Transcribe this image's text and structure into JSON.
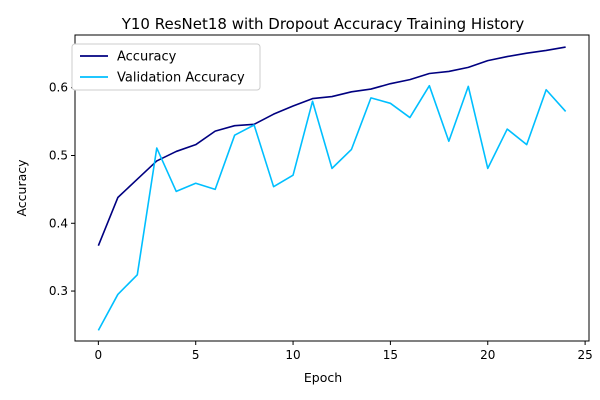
{
  "chart_data": {
    "type": "line",
    "title": "Y10 ResNet18 with Dropout Accuracy Training History",
    "xlabel": "Epoch",
    "ylabel": "Accuracy",
    "xlim": [
      -1.2,
      25.2
    ],
    "ylim": [
      0.2263,
      0.6778
    ],
    "xticks": [
      0,
      5,
      10,
      15,
      20,
      25
    ],
    "yticks": [
      0.3,
      0.4,
      0.5,
      0.6
    ],
    "xtick_labels": [
      "0",
      "5",
      "10",
      "15",
      "20",
      "25"
    ],
    "ytick_labels": [
      "0.3",
      "0.4",
      "0.5",
      "0.6"
    ],
    "grid": false,
    "legend_position": "upper-left",
    "x": [
      0,
      1,
      2,
      3,
      4,
      5,
      6,
      7,
      8,
      9,
      10,
      11,
      12,
      13,
      14,
      15,
      16,
      17,
      18,
      19,
      20,
      21,
      22,
      23,
      24
    ],
    "series": [
      {
        "name": "Accuracy",
        "color": "#000080",
        "values": [
          0.367,
          0.438,
          0.465,
          0.492,
          0.506,
          0.516,
          0.536,
          0.544,
          0.546,
          0.561,
          0.573,
          0.584,
          0.587,
          0.594,
          0.598,
          0.606,
          0.612,
          0.621,
          0.624,
          0.63,
          0.64,
          0.646,
          0.651,
          0.655,
          0.66
        ]
      },
      {
        "name": "Validation Accuracy",
        "color": "#00BFFF",
        "values": [
          0.242,
          0.295,
          0.324,
          0.511,
          0.447,
          0.459,
          0.45,
          0.53,
          0.545,
          0.454,
          0.471,
          0.58,
          0.481,
          0.509,
          0.585,
          0.577,
          0.556,
          0.603,
          0.521,
          0.602,
          0.481,
          0.539,
          0.516,
          0.597,
          0.565
        ]
      }
    ]
  }
}
